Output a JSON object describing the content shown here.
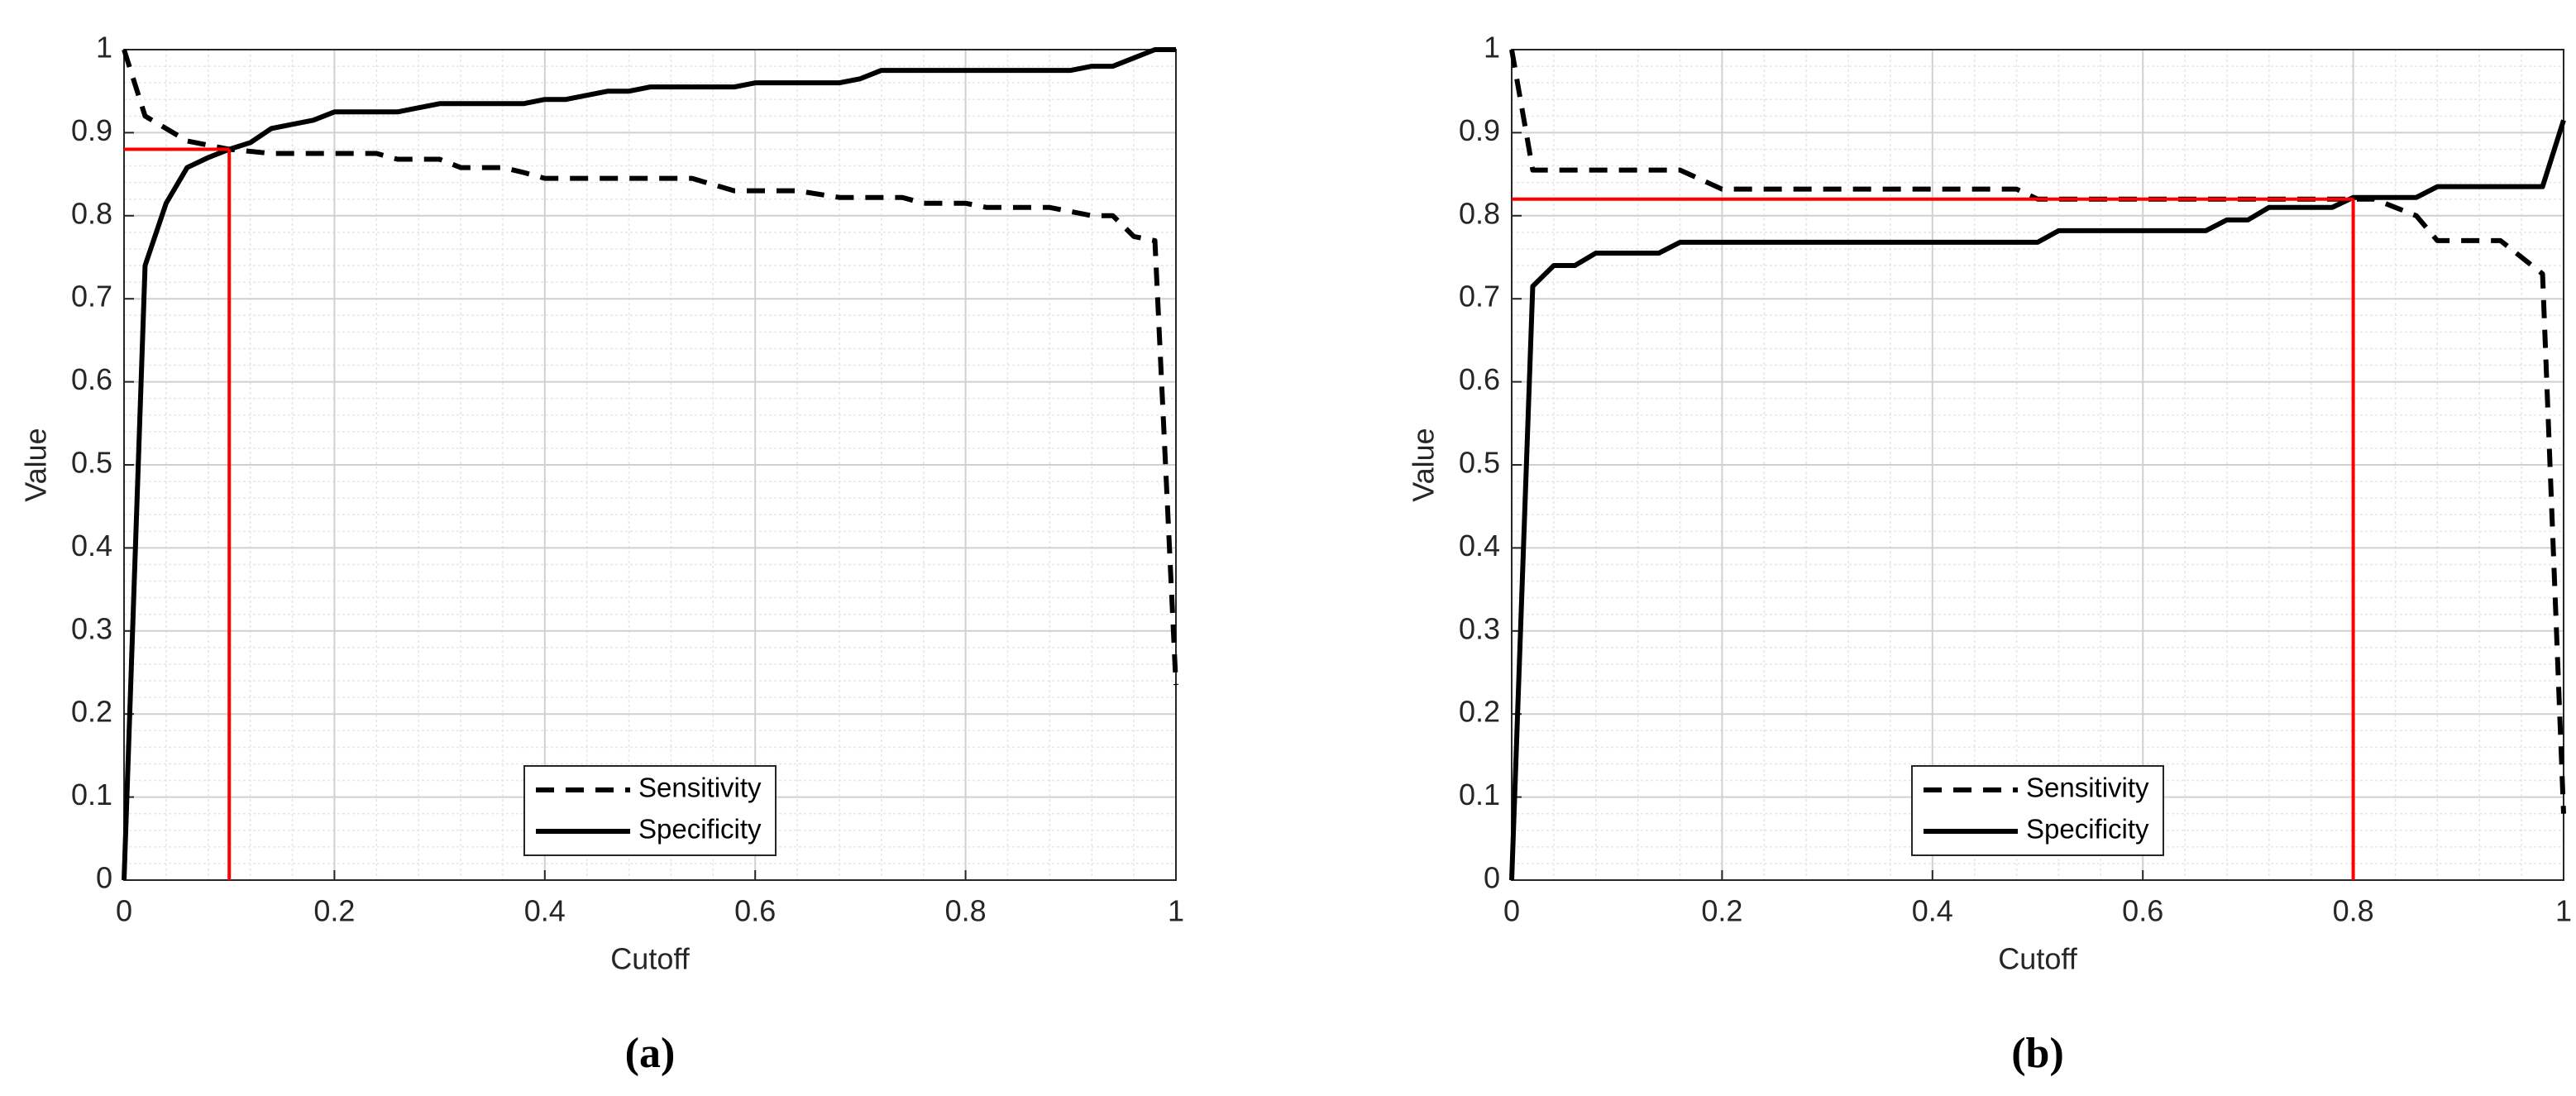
{
  "chart_data": [
    {
      "type": "line",
      "panel_label": "(a)",
      "xlabel": "Cutoff",
      "ylabel": "Value",
      "xlim": [
        0,
        1
      ],
      "ylim": [
        0,
        1
      ],
      "xticks": [
        0,
        0.2,
        0.4,
        0.6,
        0.8,
        1
      ],
      "yticks": [
        0,
        0.1,
        0.2,
        0.3,
        0.4,
        0.5,
        0.6,
        0.7,
        0.8,
        0.9,
        1
      ],
      "grid": true,
      "minor_grid": true,
      "legend": "lower center",
      "cutoff": {
        "x": 0.1,
        "y": 0.88,
        "color": "#ff0000"
      },
      "series": [
        {
          "name": "Sensitivity",
          "color": "#000000",
          "dash": true,
          "x": [
            0,
            0.02,
            0.04,
            0.06,
            0.1,
            0.14,
            0.24,
            0.26,
            0.3,
            0.32,
            0.36,
            0.38,
            0.4,
            0.54,
            0.58,
            0.64,
            0.68,
            0.74,
            0.76,
            0.8,
            0.82,
            0.88,
            0.92,
            0.94,
            0.96,
            0.98,
            1
          ],
          "values": [
            1,
            0.92,
            0.905,
            0.89,
            0.88,
            0.875,
            0.875,
            0.868,
            0.868,
            0.858,
            0.858,
            0.852,
            0.845,
            0.845,
            0.83,
            0.83,
            0.822,
            0.822,
            0.815,
            0.815,
            0.81,
            0.81,
            0.8,
            0.8,
            0.775,
            0.77,
            0.235
          ]
        },
        {
          "name": "Specificity",
          "color": "#000000",
          "dash": false,
          "x": [
            0,
            0.02,
            0.04,
            0.06,
            0.08,
            0.1,
            0.12,
            0.14,
            0.16,
            0.18,
            0.2,
            0.26,
            0.3,
            0.38,
            0.4,
            0.42,
            0.44,
            0.46,
            0.48,
            0.5,
            0.58,
            0.6,
            0.68,
            0.7,
            0.72,
            0.9,
            0.92,
            0.94,
            0.96,
            0.98,
            1
          ],
          "values": [
            0,
            0.74,
            0.815,
            0.858,
            0.87,
            0.88,
            0.888,
            0.905,
            0.91,
            0.915,
            0.925,
            0.925,
            0.935,
            0.935,
            0.94,
            0.94,
            0.945,
            0.95,
            0.95,
            0.955,
            0.955,
            0.96,
            0.96,
            0.965,
            0.975,
            0.975,
            0.98,
            0.98,
            0.99,
            1,
            1
          ]
        }
      ]
    },
    {
      "type": "line",
      "panel_label": "(b)",
      "xlabel": "Cutoff",
      "ylabel": "Value",
      "xlim": [
        0,
        1
      ],
      "ylim": [
        0,
        1
      ],
      "xticks": [
        0,
        0.2,
        0.4,
        0.6,
        0.8,
        1
      ],
      "yticks": [
        0,
        0.1,
        0.2,
        0.3,
        0.4,
        0.5,
        0.6,
        0.7,
        0.8,
        0.9,
        1
      ],
      "grid": true,
      "minor_grid": true,
      "legend": "lower center",
      "cutoff": {
        "x": 0.8,
        "y": 0.82,
        "color": "#ff0000"
      },
      "series": [
        {
          "name": "Sensitivity",
          "color": "#000000",
          "dash": true,
          "x": [
            0,
            0.02,
            0.16,
            0.2,
            0.48,
            0.5,
            0.8,
            0.82,
            0.86,
            0.88,
            0.94,
            0.98,
            1
          ],
          "values": [
            1,
            0.855,
            0.855,
            0.832,
            0.832,
            0.82,
            0.82,
            0.82,
            0.8,
            0.77,
            0.77,
            0.73,
            0.08
          ]
        },
        {
          "name": "Specificity",
          "color": "#000000",
          "dash": false,
          "x": [
            0,
            0.02,
            0.04,
            0.06,
            0.08,
            0.14,
            0.16,
            0.5,
            0.52,
            0.66,
            0.68,
            0.7,
            0.72,
            0.78,
            0.8,
            0.86,
            0.88,
            0.98,
            1
          ],
          "values": [
            0,
            0.715,
            0.74,
            0.74,
            0.755,
            0.755,
            0.768,
            0.768,
            0.782,
            0.782,
            0.795,
            0.795,
            0.81,
            0.81,
            0.822,
            0.822,
            0.835,
            0.835,
            0.915
          ]
        }
      ]
    }
  ]
}
